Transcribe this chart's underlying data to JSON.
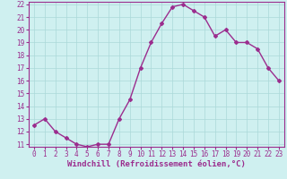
{
  "x": [
    0,
    1,
    2,
    3,
    4,
    5,
    6,
    7,
    8,
    9,
    10,
    11,
    12,
    13,
    14,
    15,
    16,
    17,
    18,
    19,
    20,
    21,
    22,
    23
  ],
  "y": [
    12.5,
    13.0,
    12.0,
    11.5,
    11.0,
    10.8,
    11.0,
    11.0,
    13.0,
    14.5,
    17.0,
    19.0,
    20.5,
    21.8,
    22.0,
    21.5,
    21.0,
    19.5,
    20.0,
    19.0,
    19.0,
    18.5,
    17.0,
    16.0
  ],
  "line_color": "#9b2d8e",
  "marker": "D",
  "marker_size": 2,
  "bg_color": "#cff0f0",
  "grid_color": "#aad8d8",
  "xlabel": "Windchill (Refroidissement éolien,°C)",
  "xlabel_color": "#9b2d8e",
  "ylim": [
    11,
    22
  ],
  "yticks": [
    11,
    12,
    13,
    14,
    15,
    16,
    17,
    18,
    19,
    20,
    21,
    22
  ],
  "xlim": [
    -0.5,
    23.5
  ],
  "xticks": [
    0,
    1,
    2,
    3,
    4,
    5,
    6,
    7,
    8,
    9,
    10,
    11,
    12,
    13,
    14,
    15,
    16,
    17,
    18,
    19,
    20,
    21,
    22,
    23
  ],
  "tick_fontsize": 5.5,
  "xlabel_fontsize": 6.5,
  "line_width": 1.0
}
